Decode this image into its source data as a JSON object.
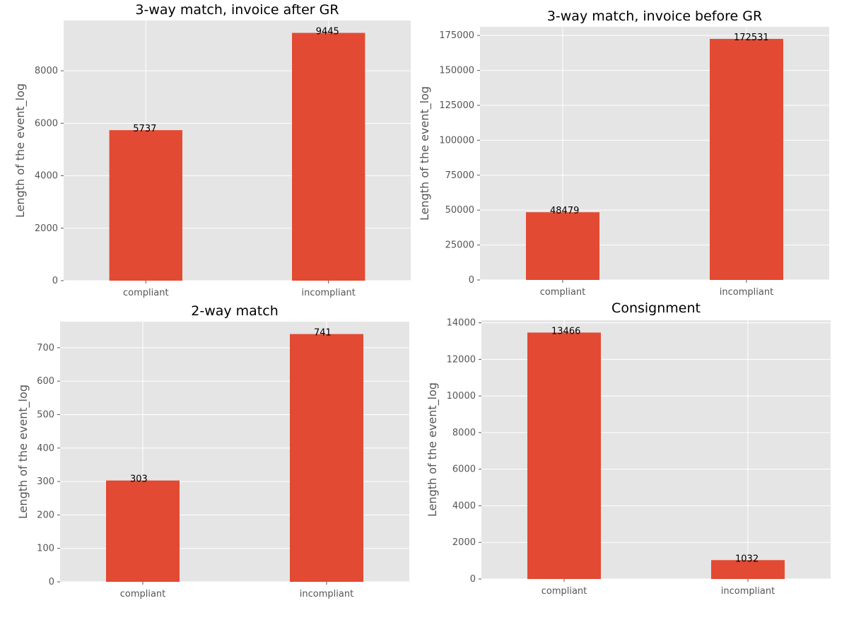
{
  "chart_data": [
    {
      "type": "bar",
      "title": "3-way match, invoice after GR",
      "ylabel": "Length of the event_log",
      "xlabel": "",
      "categories": [
        "compliant",
        "incompliant"
      ],
      "values": [
        5737,
        9445
      ],
      "data_labels": [
        "5737",
        "9445"
      ],
      "yticks": [
        0,
        2000,
        4000,
        6000,
        8000
      ],
      "ylim": [
        0,
        9917
      ],
      "bar_color": "#E24A33",
      "grid": true
    },
    {
      "type": "bar",
      "title": "3-way match, invoice before GR",
      "ylabel": "Length of the event_log",
      "xlabel": "",
      "categories": [
        "compliant",
        "incompliant"
      ],
      "values": [
        48479,
        172531
      ],
      "data_labels": [
        "48479",
        "172531"
      ],
      "yticks": [
        0,
        25000,
        50000,
        75000,
        100000,
        125000,
        150000,
        175000
      ],
      "ylim": [
        0,
        181158
      ],
      "bar_color": "#E24A33",
      "grid": true
    },
    {
      "type": "bar",
      "title": "2-way match",
      "ylabel": "Length of the event_log",
      "xlabel": "",
      "categories": [
        "compliant",
        "incompliant"
      ],
      "values": [
        303,
        741
      ],
      "data_labels": [
        "303",
        "741"
      ],
      "yticks": [
        0,
        100,
        200,
        300,
        400,
        500,
        600,
        700
      ],
      "ylim": [
        0,
        778
      ],
      "bar_color": "#E24A33",
      "grid": true
    },
    {
      "type": "bar",
      "title": "Consignment",
      "ylabel": "Length of the event_log",
      "xlabel": "",
      "categories": [
        "compliant",
        "incompliant"
      ],
      "values": [
        13466,
        1032
      ],
      "data_labels": [
        "13466",
        "1032"
      ],
      "yticks": [
        0,
        2000,
        4000,
        6000,
        8000,
        10000,
        12000,
        14000
      ],
      "ylim": [
        0,
        14139
      ],
      "bar_color": "#E24A33",
      "grid": true
    }
  ],
  "colors": {
    "plot_background": "#E5E5E5",
    "grid": "#FFFFFF",
    "bar": "#E24A33",
    "tick_label": "#555555",
    "axis_label": "#555555",
    "title": "#000000",
    "data_label": "#000000"
  }
}
